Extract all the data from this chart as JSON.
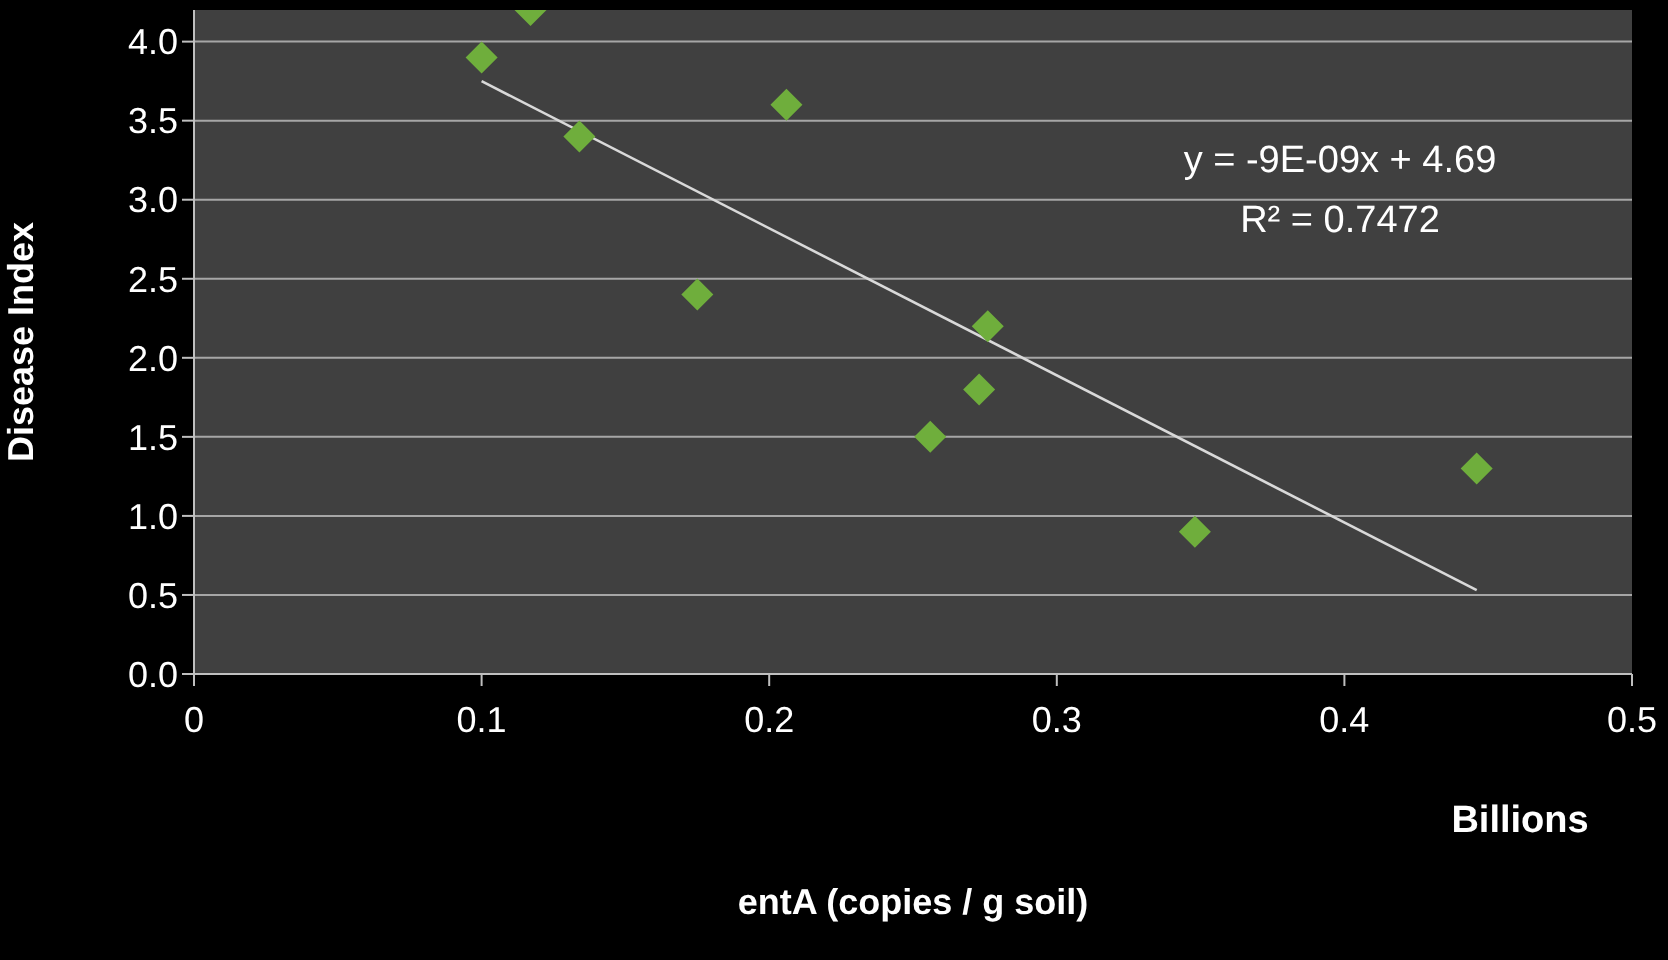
{
  "chart_data": {
    "type": "scatter",
    "xlabel": "entA (copies / g soil)",
    "ylabel": "Disease Index",
    "annotations": [
      "y = -9E-09x + 4.69",
      "R² = 0.7472",
      "Billions"
    ],
    "series": [
      {
        "color": "#6fae3c",
        "x": [
          0.1,
          0.117,
          0.134,
          0.175,
          0.206,
          0.256,
          0.273,
          0.276,
          0.348,
          0.446
        ],
        "values": [
          3.9,
          4.2,
          3.4,
          2.4,
          3.6,
          1.5,
          1.8,
          2.2,
          0.9,
          1.3
        ],
        "marker": "diamond"
      },
      {
        "type": "line",
        "color": "#d9d9d9",
        "x": [
          0.1,
          0.446
        ],
        "values": [
          3.75,
          0.53
        ],
        "marker": "none"
      }
    ],
    "xlim": [
      0,
      0.5
    ],
    "xticks": [
      0,
      0.1,
      0.2,
      0.3,
      0.4,
      0.5
    ],
    "ylim": [
      0,
      4.2
    ],
    "yticks": [
      {
        "value": 0,
        "label": "0.0"
      },
      {
        "value": 0.5,
        "label": "0.5"
      },
      {
        "value": 1,
        "label": "1.0"
      },
      {
        "value": 1.5,
        "label": "1.5"
      },
      {
        "value": 2,
        "label": "2.0"
      },
      {
        "value": 2.5,
        "label": "2.5"
      },
      {
        "value": 3,
        "label": "3.0"
      },
      {
        "value": 3.5,
        "label": "3.5"
      },
      {
        "value": 4,
        "label": "4.0"
      }
    ],
    "grid": "y"
  }
}
